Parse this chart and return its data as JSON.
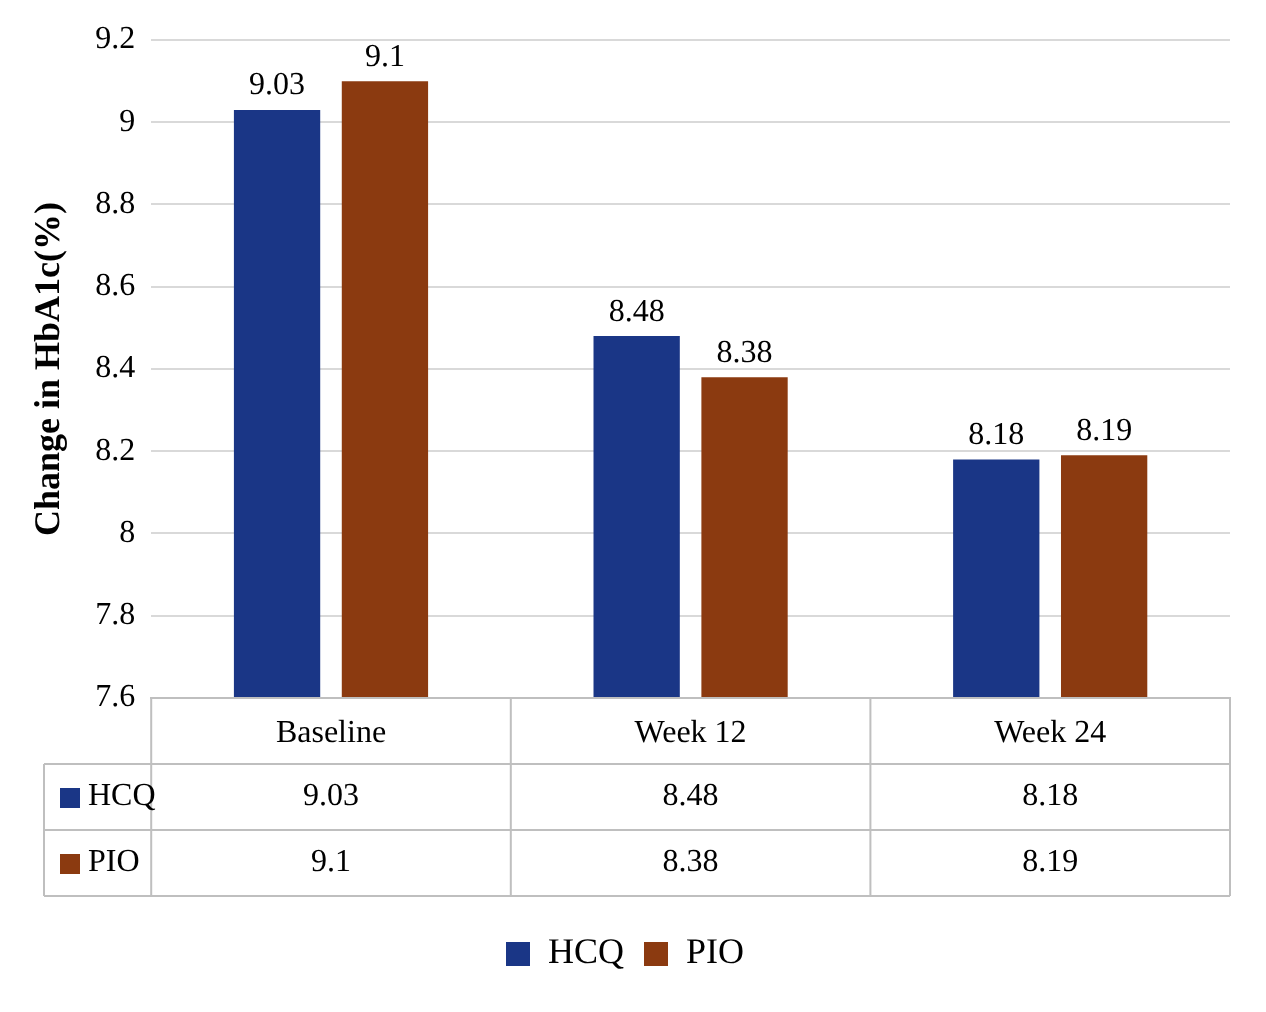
{
  "chart_data": {
    "type": "bar",
    "ylabel": "Change in HbA1c(%)",
    "categories": [
      "Baseline",
      "Week 12",
      "Week 24"
    ],
    "series": [
      {
        "name": "HCQ",
        "color": "#1a3686",
        "values": [
          9.03,
          8.48,
          8.18
        ]
      },
      {
        "name": "PIO",
        "color": "#8b3a10",
        "values": [
          9.1,
          8.38,
          8.19
        ]
      }
    ],
    "annotations": [
      "9.03",
      "8.48",
      "8.18",
      "9.1",
      "8.38",
      "8.19"
    ],
    "ylim": [
      7.6,
      9.2
    ],
    "yticks": [
      7.6,
      7.8,
      8,
      8.2,
      8.4,
      8.6,
      8.8,
      9,
      9.2
    ],
    "grid": "y",
    "legend": "bottom",
    "data_labels": true
  }
}
